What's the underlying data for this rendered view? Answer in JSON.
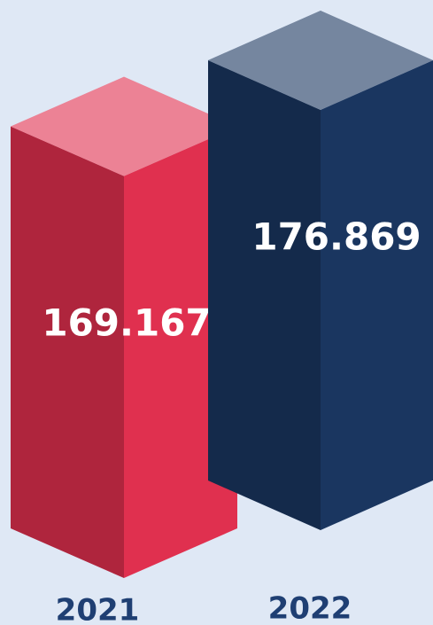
{
  "chart_data": {
    "type": "bar",
    "categories": [
      "2021",
      "2022"
    ],
    "values": [
      169.167,
      176.869
    ],
    "colors": [
      "#e0304f",
      "#1a3660"
    ]
  }
}
